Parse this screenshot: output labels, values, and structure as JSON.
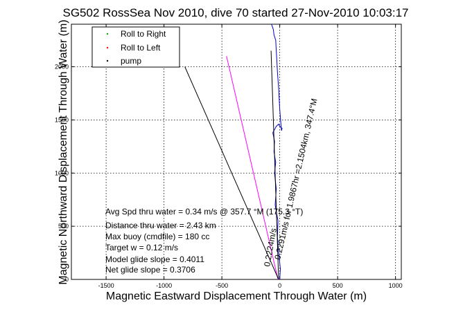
{
  "chart_data": {
    "type": "line",
    "title": "SG502 RossSea Nov 2010, dive 70 started 27-Nov-2010 10:03:17",
    "xlabel": "Magnetic Eastward Displacement Through Water (m)",
    "ylabel": "Magnetic Northward Displacement Through Water (m)",
    "xlim": [
      -1800,
      1050
    ],
    "ylim": [
      0,
      2400
    ],
    "xticks": [
      -1500,
      -1000,
      -500,
      0,
      500,
      1000
    ],
    "yticks": [
      0,
      500,
      1000,
      1500,
      2000
    ],
    "grid": true,
    "legend_position": "top-left",
    "legend": [
      {
        "label": "Roll to Right",
        "color": "#00aa00",
        "marker": "dot"
      },
      {
        "label": "Roll to Left",
        "color": "#ff0000",
        "marker": "dot"
      },
      {
        "label": "pump",
        "color": "#000000",
        "marker": "dot"
      }
    ],
    "series": [
      {
        "color": "#0000cc",
        "x": [
          0,
          5,
          -10,
          -20,
          -15,
          -40,
          -30,
          -45,
          -35,
          -50,
          -45,
          -60,
          -40,
          -30,
          -20,
          -10,
          0,
          20,
          15,
          0,
          -10,
          -20,
          -25,
          -30,
          -35,
          -50,
          -55,
          -65,
          -72
        ],
        "y": [
          0,
          100,
          250,
          400,
          550,
          700,
          850,
          1000,
          1100,
          1200,
          1300,
          1380,
          1420,
          1440,
          1450,
          1460,
          1440,
          1420,
          1400,
          1600,
          1800,
          1950,
          2050,
          2150,
          2250,
          2300,
          2350,
          2380,
          2400
        ]
      },
      {
        "color": "#ff00ff",
        "x": [
          -15,
          -460
        ],
        "y": [
          0,
          2100
        ]
      },
      {
        "color": "#000000",
        "x": [
          -10,
          -820
        ],
        "y": [
          0,
          2000
        ]
      },
      {
        "color": "#000000",
        "x": [
          -10,
          -75
        ],
        "y": [
          0,
          2150
        ]
      }
    ],
    "annotations": {
      "lines": [
        "Avg Spd thru water =  0.34 m/s @ 357.7   °M (175.3 °T)",
        "Distance thru water =  2.43 km",
        "Max buoy (cmdfile) = 180 cc",
        "Target w = 0.12 m/s",
        "Model glide slope = 0.4011",
        "Net glide slope = 0.3706"
      ],
      "rotated": [
        "0.2291m/s for 1.9867hr =2.1504km, 347.4°M",
        "0.2224m/s"
      ]
    }
  }
}
